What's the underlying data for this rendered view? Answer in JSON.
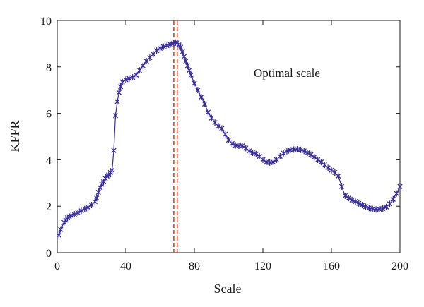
{
  "chart_data": {
    "type": "line",
    "title": "",
    "xlabel": "Scale",
    "ylabel": "KFFR",
    "xlim": [
      0,
      200
    ],
    "ylim": [
      0,
      10
    ],
    "xticks": [
      0,
      40,
      80,
      120,
      160,
      200
    ],
    "yticks": [
      0,
      2,
      4,
      6,
      8,
      10
    ],
    "grid": false,
    "legend": "none",
    "annotation": "Optimal scale",
    "optimal_scale_lines": [
      68,
      70
    ],
    "colors": {
      "series": "#3a2f9a",
      "optimal_line": "#e0411a",
      "axis": "#1a1a1a"
    },
    "marker": "asterisk",
    "series": [
      {
        "name": "",
        "points": [
          [
            1,
            0.75
          ],
          [
            2,
            1.0
          ],
          [
            4,
            1.3
          ],
          [
            5,
            1.4
          ],
          [
            6,
            1.5
          ],
          [
            7,
            1.55
          ],
          [
            8,
            1.6
          ],
          [
            10,
            1.65
          ],
          [
            12,
            1.72
          ],
          [
            14,
            1.8
          ],
          [
            16,
            1.88
          ],
          [
            18,
            1.95
          ],
          [
            20,
            2.05
          ],
          [
            22,
            2.2
          ],
          [
            23,
            2.35
          ],
          [
            24,
            2.6
          ],
          [
            25,
            2.8
          ],
          [
            26,
            2.95
          ],
          [
            27,
            3.05
          ],
          [
            28,
            3.2
          ],
          [
            29,
            3.3
          ],
          [
            30,
            3.35
          ],
          [
            31,
            3.45
          ],
          [
            32,
            3.55
          ],
          [
            33,
            4.4
          ],
          [
            34,
            5.9
          ],
          [
            35,
            6.5
          ],
          [
            36,
            6.9
          ],
          [
            37,
            7.15
          ],
          [
            38,
            7.35
          ],
          [
            40,
            7.45
          ],
          [
            42,
            7.5
          ],
          [
            44,
            7.55
          ],
          [
            46,
            7.65
          ],
          [
            48,
            7.85
          ],
          [
            50,
            8.05
          ],
          [
            52,
            8.25
          ],
          [
            54,
            8.4
          ],
          [
            56,
            8.55
          ],
          [
            58,
            8.7
          ],
          [
            60,
            8.8
          ],
          [
            62,
            8.87
          ],
          [
            64,
            8.92
          ],
          [
            66,
            8.97
          ],
          [
            67,
            9.0
          ],
          [
            68,
            9.02
          ],
          [
            69,
            9.05
          ],
          [
            70,
            9.05
          ],
          [
            71,
            8.95
          ],
          [
            72,
            8.85
          ],
          [
            73,
            8.65
          ],
          [
            74,
            8.45
          ],
          [
            75,
            8.25
          ],
          [
            76,
            8.05
          ],
          [
            77,
            7.85
          ],
          [
            78,
            7.65
          ],
          [
            80,
            7.3
          ],
          [
            82,
            7.0
          ],
          [
            84,
            6.7
          ],
          [
            86,
            6.4
          ],
          [
            88,
            6.05
          ],
          [
            90,
            5.8
          ],
          [
            92,
            5.6
          ],
          [
            94,
            5.45
          ],
          [
            96,
            5.35
          ],
          [
            98,
            5.1
          ],
          [
            100,
            4.85
          ],
          [
            102,
            4.7
          ],
          [
            104,
            4.62
          ],
          [
            106,
            4.6
          ],
          [
            108,
            4.6
          ],
          [
            110,
            4.5
          ],
          [
            112,
            4.38
          ],
          [
            114,
            4.3
          ],
          [
            116,
            4.25
          ],
          [
            118,
            4.15
          ],
          [
            120,
            4.0
          ],
          [
            122,
            3.9
          ],
          [
            124,
            3.88
          ],
          [
            126,
            3.9
          ],
          [
            128,
            4.0
          ],
          [
            130,
            4.15
          ],
          [
            132,
            4.28
          ],
          [
            134,
            4.37
          ],
          [
            136,
            4.42
          ],
          [
            138,
            4.44
          ],
          [
            140,
            4.45
          ],
          [
            142,
            4.43
          ],
          [
            144,
            4.38
          ],
          [
            146,
            4.3
          ],
          [
            148,
            4.22
          ],
          [
            150,
            4.12
          ],
          [
            152,
            4.0
          ],
          [
            154,
            3.9
          ],
          [
            156,
            3.78
          ],
          [
            158,
            3.65
          ],
          [
            160,
            3.55
          ],
          [
            162,
            3.45
          ],
          [
            164,
            3.3
          ],
          [
            166,
            2.85
          ],
          [
            168,
            2.45
          ],
          [
            170,
            2.35
          ],
          [
            172,
            2.27
          ],
          [
            174,
            2.2
          ],
          [
            176,
            2.12
          ],
          [
            178,
            2.05
          ],
          [
            180,
            1.98
          ],
          [
            182,
            1.92
          ],
          [
            184,
            1.88
          ],
          [
            186,
            1.86
          ],
          [
            188,
            1.87
          ],
          [
            190,
            1.9
          ],
          [
            192,
            1.97
          ],
          [
            194,
            2.1
          ],
          [
            196,
            2.3
          ],
          [
            198,
            2.55
          ],
          [
            200,
            2.85
          ]
        ]
      }
    ]
  }
}
